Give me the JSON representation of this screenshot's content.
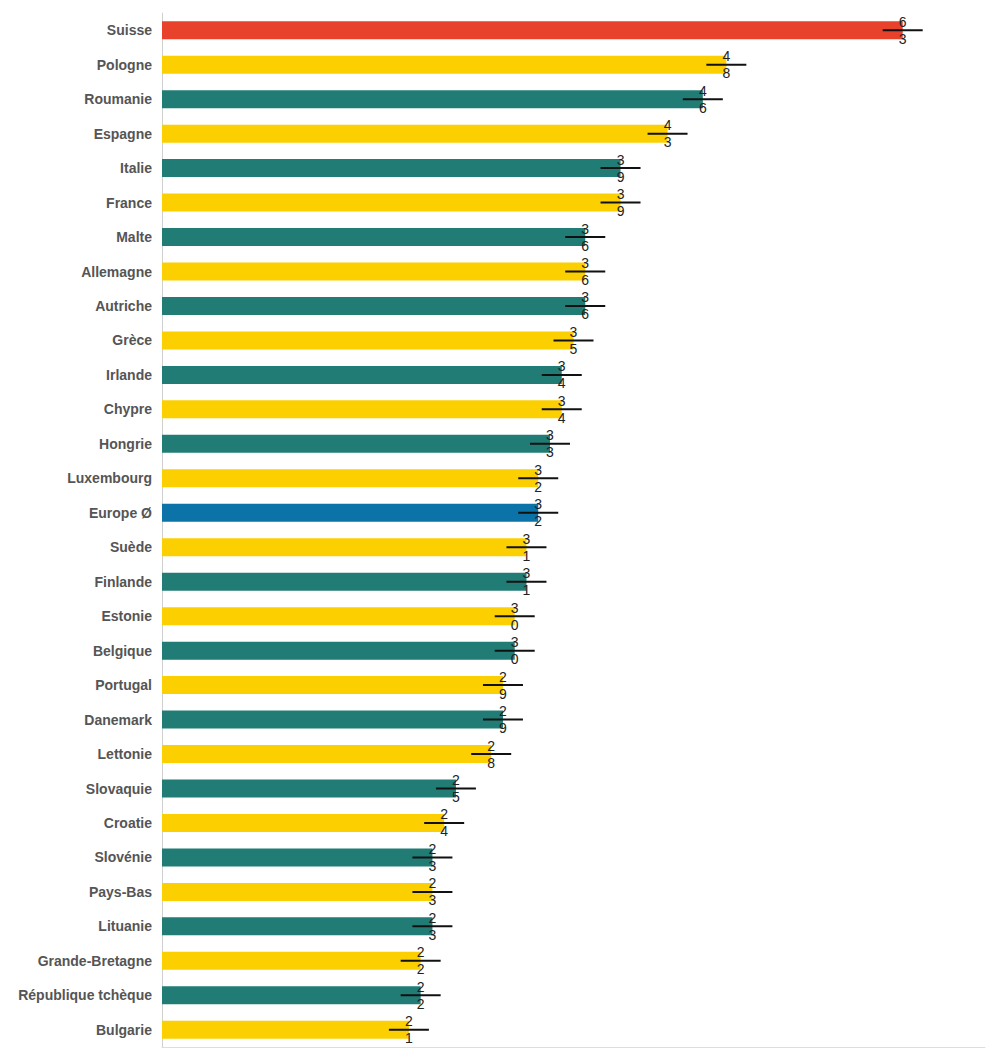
{
  "chart_data": {
    "type": "bar",
    "orientation": "horizontal",
    "categories": [
      "Suisse",
      "Pologne",
      "Roumanie",
      "Espagne",
      "Italie",
      "France",
      "Malte",
      "Allemagne",
      "Autriche",
      "Grèce",
      "Irlande",
      "Chypre",
      "Hongrie",
      "Luxembourg",
      "Europe Ø",
      "Suède",
      "Finlande",
      "Estonie",
      "Belgique",
      "Portugal",
      "Danemark",
      "Lettonie",
      "Slovaquie",
      "Croatie",
      "Slovénie",
      "Pays-Bas",
      "Lituanie",
      "Grande-Bretagne",
      "République tchèque",
      "Bulgarie"
    ],
    "values": [
      6.3,
      4.8,
      4.6,
      4.3,
      3.9,
      3.9,
      3.6,
      3.6,
      3.6,
      3.5,
      3.4,
      3.4,
      3.3,
      3.2,
      3.2,
      3.1,
      3.1,
      3.0,
      3.0,
      2.9,
      2.9,
      2.8,
      2.5,
      2.4,
      2.3,
      2.3,
      2.3,
      2.2,
      2.2,
      2.1
    ],
    "value_labels": [
      "6\n3",
      "4\n8",
      "4\n6",
      "4\n3",
      "3\n9",
      "3\n9",
      "3\n6",
      "3\n6",
      "3\n6",
      "3\n5",
      "3\n4",
      "3\n4",
      "3\n3",
      "3\n2",
      "3\n2",
      "3\n1",
      "3\n1",
      "3\n0",
      "3\n0",
      "2\n9",
      "2\n9",
      "2\n8",
      "2\n5",
      "2\n4",
      "2\n3",
      "2\n3",
      "2\n3",
      "2\n2",
      "2\n2",
      "2\n1"
    ],
    "colors": [
      "#e8412c",
      "#fcd000",
      "#217c76",
      "#fcd000",
      "#217c76",
      "#fcd000",
      "#217c76",
      "#fcd000",
      "#217c76",
      "#fcd000",
      "#217c76",
      "#fcd000",
      "#217c76",
      "#fcd000",
      "#0b73a8",
      "#fcd000",
      "#217c76",
      "#fcd000",
      "#217c76",
      "#fcd000",
      "#217c76",
      "#fcd000",
      "#217c76",
      "#fcd000",
      "#217c76",
      "#fcd000",
      "#217c76",
      "#fcd000",
      "#217c76",
      "#fcd000"
    ],
    "xlim": [
      0,
      7
    ],
    "data_labels": true,
    "tick_labels": "y",
    "grid": false
  }
}
